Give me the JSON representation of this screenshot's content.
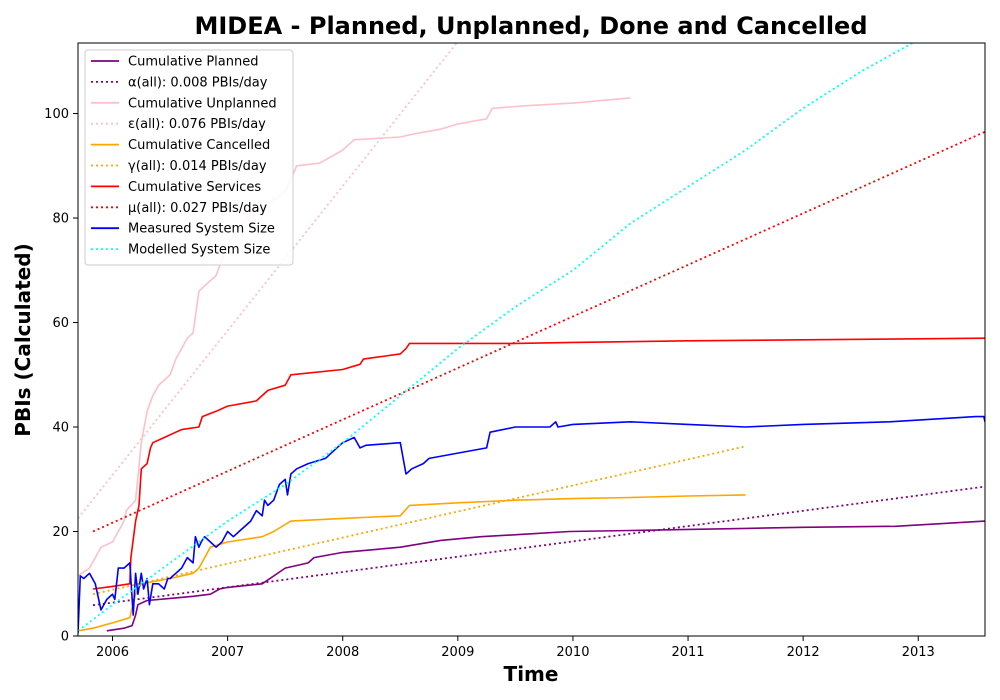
{
  "chart_data": {
    "type": "line",
    "title": "MIDEA - Planned, Unplanned, Done  and Cancelled",
    "xlabel": "Time",
    "ylabel": "PBIs (Calculated)",
    "xlim": [
      2005.7,
      2013.58
    ],
    "ylim": [
      0,
      113.5
    ],
    "x_ticks": [
      2006,
      2007,
      2008,
      2009,
      2010,
      2011,
      2012,
      2013
    ],
    "y_ticks": [
      0,
      20,
      40,
      60,
      80,
      100
    ],
    "legend_position": "top-left",
    "series": [
      {
        "name": "Cumulative Planned",
        "color": "#800080",
        "style": "solid",
        "x": [
          2005.95,
          2006.1,
          2006.17,
          2006.2,
          2006.22,
          2006.3,
          2006.5,
          2006.7,
          2006.85,
          2006.93,
          2007.0,
          2007.3,
          2007.5,
          2007.7,
          2007.75,
          2008.0,
          2008.3,
          2008.5,
          2008.85,
          2009.2,
          2009.6,
          2009.97,
          2010.5,
          2011.0,
          2011.5,
          2012.0,
          2012.8,
          2013.58
        ],
        "y": [
          1,
          1.5,
          2,
          4,
          6,
          6.8,
          7.2,
          7.6,
          8,
          9,
          9.3,
          10,
          13,
          14,
          15,
          16,
          16.6,
          17,
          18.3,
          19,
          19.5,
          20,
          20.2,
          20.4,
          20.6,
          20.8,
          21,
          22
        ]
      },
      {
        "name": "α(all): 0.008 PBIs/day",
        "color": "#800080",
        "style": "dotted",
        "x": [
          2005.83,
          2013.58
        ],
        "y": [
          5.9,
          28.6
        ]
      },
      {
        "name": "Cumulative Unplanned",
        "color": "#ffc0cb",
        "style": "solid",
        "x": [
          2005.7,
          2005.8,
          2005.85,
          2005.9,
          2006.0,
          2006.05,
          2006.1,
          2006.12,
          2006.2,
          2006.25,
          2006.3,
          2006.35,
          2006.4,
          2006.5,
          2006.55,
          2006.6,
          2006.65,
          2006.7,
          2006.75,
          2006.8,
          2006.9,
          2007.0,
          2007.1,
          2007.2,
          2007.3,
          2007.5,
          2007.6,
          2007.8,
          2008.0,
          2008.1,
          2008.5,
          2008.6,
          2008.85,
          2009.0,
          2009.25,
          2009.3,
          2009.6,
          2010.0,
          2010.5
        ],
        "y": [
          11.5,
          13,
          15,
          17,
          18,
          20,
          22,
          24,
          26,
          37,
          43,
          46,
          48,
          50,
          53,
          55,
          57,
          58,
          66,
          67,
          69,
          75,
          78,
          81,
          82,
          85,
          90,
          90.5,
          93,
          95,
          95.5,
          96,
          97,
          98,
          99,
          101,
          101.5,
          102,
          103
        ]
      },
      {
        "name": "ε(all): 0.076 PBIs/day",
        "color": "#ffc0cb",
        "style": "dotted",
        "x": [
          2005.7,
          2008.99
        ],
        "y": [
          22.5,
          113.5
        ]
      },
      {
        "name": "Cumulative Cancelled",
        "color": "#ffa500",
        "style": "solid",
        "x": [
          2005.7,
          2005.83,
          2006.0,
          2006.15,
          2006.2,
          2006.25,
          2006.5,
          2006.7,
          2006.75,
          2006.85,
          2007.0,
          2007.3,
          2007.4,
          2007.55,
          2008.0,
          2008.5,
          2008.58,
          2009.0,
          2009.5,
          2010.0,
          2010.5,
          2011.0,
          2011.5
        ],
        "y": [
          1,
          1.5,
          2.5,
          3.5,
          8,
          10,
          11,
          12,
          13,
          17,
          18,
          19,
          20,
          22,
          22.5,
          23,
          25,
          25.5,
          26,
          26.3,
          26.5,
          26.8,
          27
        ]
      },
      {
        "name": "γ(all): 0.014 PBIs/day",
        "color": "#ffa500",
        "style": "dotted",
        "x": [
          2005.83,
          2011.5
        ],
        "y": [
          8.0,
          36.3
        ]
      },
      {
        "name": "Cumulative Services",
        "color": "#ff0000",
        "style": "solid",
        "x": [
          2005.83,
          2006.0,
          2006.15,
          2006.16,
          2006.2,
          2006.23,
          2006.25,
          2006.3,
          2006.33,
          2006.35,
          2006.45,
          2006.55,
          2006.6,
          2006.75,
          2006.78,
          2006.9,
          2007.0,
          2007.25,
          2007.35,
          2007.5,
          2007.55,
          2008.0,
          2008.15,
          2008.18,
          2008.5,
          2008.55,
          2008.58,
          2009.0,
          2009.5,
          2010.0,
          2011.0,
          2012.0,
          2013.58
        ],
        "y": [
          9,
          9.5,
          10,
          15,
          22,
          25,
          32,
          33,
          36,
          37,
          38,
          39,
          39.5,
          40,
          42,
          43,
          44,
          45,
          47,
          48,
          50,
          51,
          52,
          53,
          54,
          55,
          56,
          56,
          56,
          56.2,
          56.5,
          56.7,
          57
        ]
      },
      {
        "name": "μ(all): 0.027 PBIs/day",
        "color": "#ff0000",
        "style": "dotted",
        "x": [
          2005.83,
          2013.58
        ],
        "y": [
          20.0,
          96.5
        ]
      },
      {
        "name": "Measured System Size",
        "color": "#0000ff",
        "style": "solid",
        "x": [
          2005.7,
          2005.72,
          2005.75,
          2005.8,
          2005.85,
          2005.9,
          2005.95,
          2006.0,
          2006.02,
          2006.05,
          2006.1,
          2006.15,
          2006.18,
          2006.2,
          2006.22,
          2006.25,
          2006.27,
          2006.3,
          2006.32,
          2006.35,
          2006.4,
          2006.45,
          2006.48,
          2006.5,
          2006.55,
          2006.6,
          2006.65,
          2006.7,
          2006.72,
          2006.75,
          2006.77,
          2006.8,
          2006.85,
          2006.9,
          2006.95,
          2007.0,
          2007.05,
          2007.1,
          2007.2,
          2007.25,
          2007.3,
          2007.32,
          2007.35,
          2007.4,
          2007.45,
          2007.5,
          2007.52,
          2007.55,
          2007.6,
          2007.7,
          2007.85,
          2007.9,
          2008.0,
          2008.1,
          2008.15,
          2008.2,
          2008.5,
          2008.55,
          2008.6,
          2008.7,
          2008.75,
          2009.0,
          2009.25,
          2009.28,
          2009.5,
          2009.8,
          2009.85,
          2009.87,
          2010.0,
          2010.5,
          2011.0,
          2011.5,
          2012.0,
          2012.75,
          2013.5,
          2013.57,
          2013.58
        ],
        "y": [
          0.5,
          11.5,
          11,
          12,
          10,
          5,
          7,
          8,
          7,
          13,
          13,
          14,
          4,
          12,
          8,
          12,
          9,
          11,
          6,
          10,
          10,
          9,
          11,
          11,
          12,
          13,
          15,
          14,
          19,
          17,
          18,
          19,
          18,
          17,
          18,
          20,
          19,
          20,
          22,
          24,
          23,
          26,
          25,
          26,
          29,
          30,
          27,
          31,
          32,
          33,
          34,
          35,
          37,
          38,
          36,
          36.5,
          37,
          31,
          32,
          33,
          34,
          35,
          36,
          39,
          40,
          40,
          41,
          40,
          40.5,
          41,
          40.5,
          40,
          40.5,
          41,
          42,
          42,
          41
        ]
      },
      {
        "name": "Modelled System Size",
        "color": "#00ffff",
        "style": "dotted",
        "x": [
          2005.7,
          2006.0,
          2006.5,
          2007.0,
          2007.5,
          2008.0,
          2008.5,
          2009.0,
          2009.5,
          2010.0,
          2010.5,
          2011.0,
          2011.5,
          2012.0,
          2012.5,
          2012.95
        ],
        "y": [
          1,
          6,
          14,
          22,
          29,
          37,
          46,
          55,
          63,
          70,
          79,
          86,
          93,
          101,
          108,
          113.5
        ]
      }
    ]
  }
}
